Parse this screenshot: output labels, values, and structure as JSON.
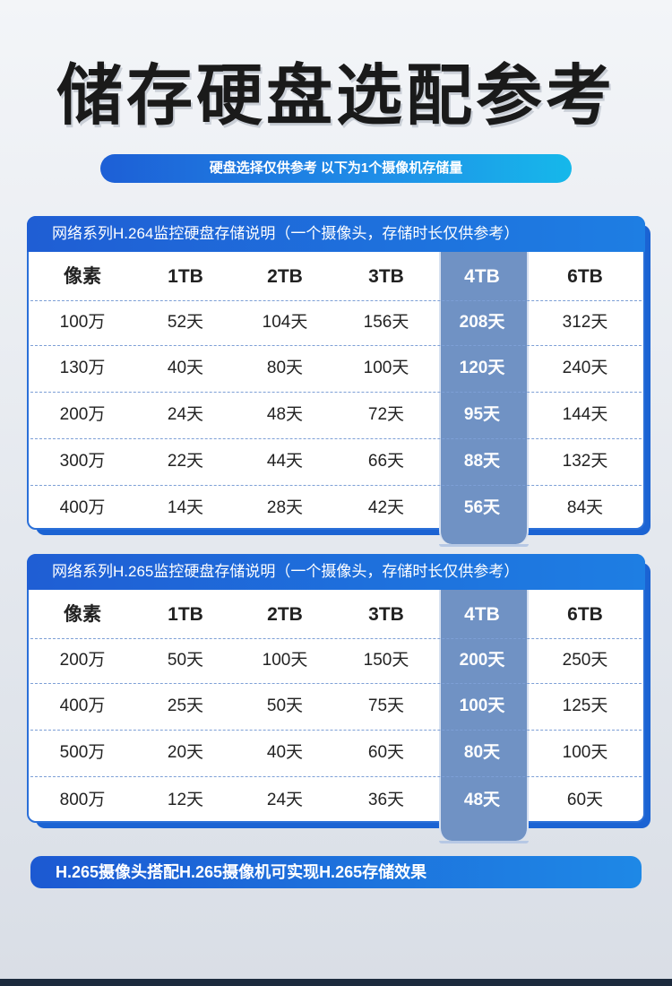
{
  "title": "储存硬盘选配参考",
  "subtitle": "硬盘选择仅供参考 以下为1个摄像机存储量",
  "tables": [
    {
      "header": "网络系列H.264监控硬盘存储说明（一个摄像头，存储时长仅供参考）",
      "columns": [
        "像素",
        "1TB",
        "2TB",
        "3TB",
        "4TB",
        "6TB"
      ],
      "rows": [
        [
          "100万",
          "52天",
          "104天",
          "156天",
          "208天",
          "312天"
        ],
        [
          "130万",
          "40天",
          "80天",
          "100天",
          "120天",
          "240天"
        ],
        [
          "200万",
          "24天",
          "48天",
          "72天",
          "95天",
          "144天"
        ],
        [
          "300万",
          "22天",
          "44天",
          "66天",
          "88天",
          "132天"
        ],
        [
          "400万",
          "14天",
          "28天",
          "42天",
          "56天",
          "84天"
        ]
      ]
    },
    {
      "header": "网络系列H.265监控硬盘存储说明（一个摄像头，存储时长仅供参考）",
      "columns": [
        "像素",
        "1TB",
        "2TB",
        "3TB",
        "4TB",
        "6TB"
      ],
      "rows": [
        [
          "200万",
          "50天",
          "100天",
          "150天",
          "200天",
          "250天"
        ],
        [
          "400万",
          "25天",
          "50天",
          "75天",
          "100天",
          "125天"
        ],
        [
          "500万",
          "20天",
          "40天",
          "60天",
          "80天",
          "100天"
        ],
        [
          "800万",
          "12天",
          "24天",
          "36天",
          "48天",
          "60天"
        ]
      ]
    }
  ],
  "highlight_column_index": 4,
  "footer": "H.265摄像头搭配H.265摄像机可实现H.265存储效果",
  "colors": {
    "accent": "#1f6fe0",
    "highlight": "#7092c4",
    "divider": "#7d9fd6"
  }
}
